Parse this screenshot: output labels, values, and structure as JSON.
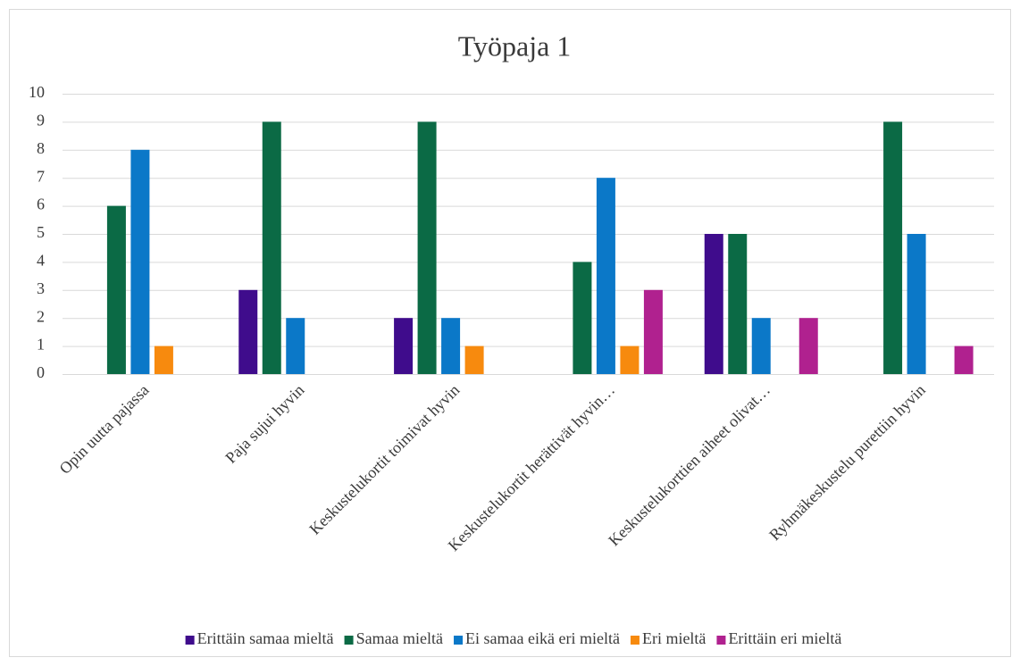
{
  "chart_data": {
    "type": "bar",
    "title": "Työpaja 1",
    "categories": [
      "Opin uutta pajassa",
      "Paja sujui hyvin",
      "Keskustelukortit toimivat hyvin",
      "Keskustelukortit herättivät hyvin…",
      "Keskustelukorttien aiheet olivat…",
      "Ryhmäkeskustelu purettiin hyvin"
    ],
    "series": [
      {
        "name": "Erittäin samaa mieltä",
        "color": "#3f0c8c",
        "values": [
          0,
          3,
          2,
          0,
          5,
          0
        ]
      },
      {
        "name": "Samaa mieltä",
        "color": "#0b6a45",
        "values": [
          6,
          9,
          9,
          4,
          5,
          9
        ]
      },
      {
        "name": "Ei samaa eikä eri mieltä",
        "color": "#0b78c8",
        "values": [
          8,
          2,
          2,
          7,
          2,
          5
        ]
      },
      {
        "name": "Eri mieltä",
        "color": "#f78a0e",
        "values": [
          1,
          0,
          1,
          1,
          0,
          0
        ]
      },
      {
        "name": "Erittäin eri mieltä",
        "color": "#b0218f",
        "values": [
          0,
          0,
          0,
          3,
          2,
          1
        ]
      }
    ],
    "ylim": [
      0,
      10
    ],
    "yticks": [
      0,
      1,
      2,
      3,
      4,
      5,
      6,
      7,
      8,
      9,
      10
    ],
    "grid": true,
    "legend": "bottom"
  }
}
